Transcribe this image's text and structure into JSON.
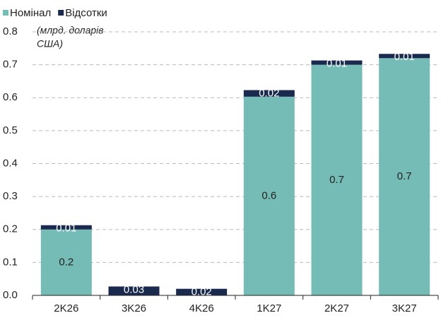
{
  "chart_data": {
    "type": "stacked_bar",
    "annotation": [
      "(млрд. доларів",
      "США)"
    ],
    "categories": [
      "2K26",
      "3K26",
      "4K26",
      "1K27",
      "2K27",
      "3K27"
    ],
    "series": [
      {
        "name": "Номінал",
        "color": "#76bcb6",
        "values": [
          0.2,
          0,
          0,
          0.603,
          0.7,
          0.72
        ],
        "value_labels": [
          "0.2",
          null,
          null,
          "0.6",
          "0.7",
          "0.7"
        ]
      },
      {
        "name": "Відсотки",
        "color": "#1a2a4f",
        "values": [
          0.013,
          0.027,
          0.02,
          0.02,
          0.013,
          0.013
        ],
        "value_labels": [
          "0.01",
          "0.03",
          "0.02",
          "0.02",
          "0.01",
          "0.01"
        ]
      }
    ],
    "ylim": [
      0,
      0.8
    ],
    "yticks": [
      {
        "value": 0,
        "label": "0.0"
      },
      0.1,
      0.2,
      0.3,
      0.4,
      0.5,
      0.6,
      0.7,
      0.8
    ],
    "grid": true,
    "legend": "top-left"
  }
}
